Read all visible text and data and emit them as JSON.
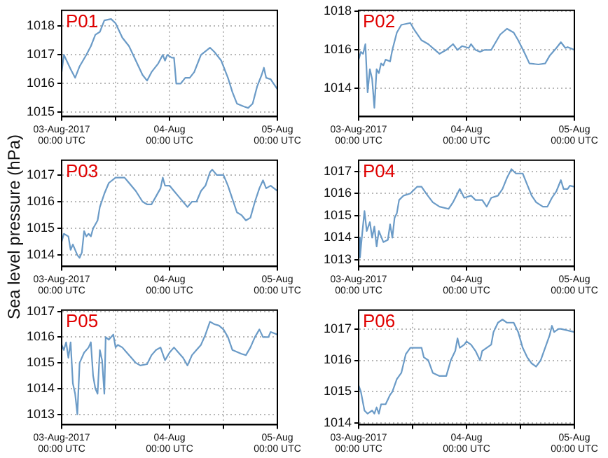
{
  "chart_data": [
    {
      "type": "line",
      "title": "P01",
      "grid": true,
      "legend": false,
      "marker": "none",
      "line_style": "solid",
      "xlim": [
        "2017-08-03T00:00",
        "2017-08-05T00:00"
      ],
      "xticks": [
        {
          "value": "2017-08-03T00:00",
          "label": "03-Aug-2017\n00:00 UTC"
        },
        {
          "value": "2017-08-03T12:00",
          "label": null
        },
        {
          "value": "2017-08-04T00:00",
          "label": "04-Aug\n00:00 UTC"
        },
        {
          "value": "2017-08-04T12:00",
          "label": null
        },
        {
          "value": "2017-08-05T00:00",
          "label": "05-Aug\n00:00 UTC"
        }
      ],
      "ylim": [
        1014.85,
        1018.55
      ],
      "yticks": [
        1015,
        1016,
        1017,
        1018
      ],
      "series": [
        {
          "color": "#6b9bc7",
          "x": [
            "2017-08-03T00:00",
            "2017-08-03T00:30",
            "2017-08-03T02:00",
            "2017-08-03T03:00",
            "2017-08-03T04:00",
            "2017-08-03T05:30",
            "2017-08-03T06:30",
            "2017-08-03T07:30",
            "2017-08-03T08:30",
            "2017-08-03T09:30",
            "2017-08-03T11:00",
            "2017-08-03T12:00",
            "2017-08-03T13:30",
            "2017-08-03T15:00",
            "2017-08-03T16:30",
            "2017-08-03T18:00",
            "2017-08-03T19:00",
            "2017-08-03T20:00",
            "2017-08-03T21:30",
            "2017-08-03T22:30",
            "2017-08-03T23:00",
            "2017-08-03T23:30",
            "2017-08-04T00:30",
            "2017-08-04T01:00",
            "2017-08-04T01:30",
            "2017-08-04T02:30",
            "2017-08-04T03:30",
            "2017-08-04T04:30",
            "2017-08-04T05:30",
            "2017-08-04T06:30",
            "2017-08-04T07:00",
            "2017-08-04T09:00",
            "2017-08-04T10:00",
            "2017-08-04T11:30",
            "2017-08-04T13:00",
            "2017-08-04T14:00",
            "2017-08-04T15:00",
            "2017-08-04T16:30",
            "2017-08-04T17:30",
            "2017-08-04T18:30",
            "2017-08-04T19:30",
            "2017-08-04T20:30",
            "2017-08-04T21:00",
            "2017-08-04T21:30",
            "2017-08-04T22:30",
            "2017-08-05T00:00"
          ],
          "values": [
            1016.4,
            1017.0,
            1016.5,
            1016.2,
            1016.6,
            1017.0,
            1017.3,
            1017.7,
            1017.8,
            1018.2,
            1018.25,
            1018.1,
            1017.6,
            1017.3,
            1016.8,
            1016.3,
            1016.1,
            1016.4,
            1016.7,
            1017.0,
            1016.8,
            1017.0,
            1016.9,
            1016.9,
            1016.0,
            1016.0,
            1016.2,
            1016.2,
            1016.4,
            1016.8,
            1017.0,
            1017.25,
            1017.1,
            1016.8,
            1016.2,
            1015.7,
            1015.3,
            1015.2,
            1015.15,
            1015.3,
            1015.9,
            1016.3,
            1016.55,
            1016.2,
            1016.15,
            1015.8
          ]
        }
      ]
    },
    {
      "type": "line",
      "title": "P02",
      "grid": true,
      "legend": false,
      "marker": "none",
      "line_style": "solid",
      "xlim": [
        "2017-08-03T00:00",
        "2017-08-05T00:00"
      ],
      "xticks": [
        {
          "value": "2017-08-03T00:00",
          "label": "03-Aug-2017\n00:00 UTC"
        },
        {
          "value": "2017-08-03T12:00",
          "label": null
        },
        {
          "value": "2017-08-04T00:00",
          "label": "04-Aug\n00:00 UTC"
        },
        {
          "value": "2017-08-04T12:00",
          "label": null
        },
        {
          "value": "2017-08-05T00:00",
          "label": "05-Aug\n00:00 UTC"
        }
      ],
      "ylim": [
        1012.55,
        1018.05
      ],
      "yticks": [
        1014,
        1016,
        1018
      ],
      "series": [
        {
          "color": "#6b9bc7",
          "x": [
            "2017-08-03T00:00",
            "2017-08-03T00:30",
            "2017-08-03T01:00",
            "2017-08-03T01:30",
            "2017-08-03T02:00",
            "2017-08-03T02:30",
            "2017-08-03T03:00",
            "2017-08-03T03:30",
            "2017-08-03T04:00",
            "2017-08-03T04:30",
            "2017-08-03T05:00",
            "2017-08-03T05:30",
            "2017-08-03T06:00",
            "2017-08-03T07:00",
            "2017-08-03T07:30",
            "2017-08-03T08:30",
            "2017-08-03T09:30",
            "2017-08-03T11:30",
            "2017-08-03T12:30",
            "2017-08-03T14:00",
            "2017-08-03T15:30",
            "2017-08-03T17:00",
            "2017-08-03T18:00",
            "2017-08-03T19:30",
            "2017-08-03T21:00",
            "2017-08-03T22:00",
            "2017-08-03T23:00",
            "2017-08-04T00:30",
            "2017-08-04T01:00",
            "2017-08-04T02:00",
            "2017-08-04T03:00",
            "2017-08-04T04:00",
            "2017-08-04T05:30",
            "2017-08-04T06:30",
            "2017-08-04T07:30",
            "2017-08-04T09:00",
            "2017-08-04T10:30",
            "2017-08-04T11:30",
            "2017-08-04T13:00",
            "2017-08-04T14:00",
            "2017-08-04T16:00",
            "2017-08-04T17:30",
            "2017-08-04T18:30",
            "2017-08-04T20:00",
            "2017-08-04T21:00",
            "2017-08-04T22:00",
            "2017-08-04T22:30",
            "2017-08-05T00:00"
          ],
          "values": [
            1015.5,
            1015.9,
            1015.8,
            1016.3,
            1013.8,
            1015.0,
            1014.5,
            1013.0,
            1015.0,
            1014.8,
            1015.3,
            1015.2,
            1015.5,
            1015.4,
            1016.0,
            1016.9,
            1017.3,
            1017.4,
            1017.0,
            1016.5,
            1016.3,
            1016.0,
            1015.8,
            1016.0,
            1016.3,
            1016.0,
            1016.2,
            1016.1,
            1016.3,
            1016.0,
            1015.9,
            1016.0,
            1016.0,
            1016.4,
            1016.8,
            1017.1,
            1016.9,
            1016.5,
            1015.8,
            1015.3,
            1015.25,
            1015.3,
            1015.7,
            1016.1,
            1016.4,
            1016.1,
            1016.15,
            1016.0
          ]
        }
      ]
    },
    {
      "type": "line",
      "title": "P03",
      "ylabel": "Sea level pressure (hPa)",
      "grid": true,
      "legend": false,
      "marker": "none",
      "line_style": "solid",
      "xlim": [
        "2017-08-03T00:00",
        "2017-08-05T00:00"
      ],
      "xticks": [
        {
          "value": "2017-08-03T00:00",
          "label": "03-Aug-2017\n00:00 UTC"
        },
        {
          "value": "2017-08-03T12:00",
          "label": null
        },
        {
          "value": "2017-08-04T00:00",
          "label": "04-Aug\n00:00 UTC"
        },
        {
          "value": "2017-08-04T12:00",
          "label": null
        },
        {
          "value": "2017-08-05T00:00",
          "label": "05-Aug\n00:00 UTC"
        }
      ],
      "ylim": [
        1013.58,
        1017.55
      ],
      "yticks": [
        1014,
        1015,
        1016,
        1017
      ],
      "series": [
        {
          "color": "#6b9bc7",
          "x": [
            "2017-08-03T00:00",
            "2017-08-03T00:30",
            "2017-08-03T01:30",
            "2017-08-03T02:00",
            "2017-08-03T02:30",
            "2017-08-03T03:30",
            "2017-08-03T04:00",
            "2017-08-03T04:30",
            "2017-08-03T05:00",
            "2017-08-03T05:30",
            "2017-08-03T06:00",
            "2017-08-03T06:30",
            "2017-08-03T07:00",
            "2017-08-03T08:00",
            "2017-08-03T08:30",
            "2017-08-03T09:30",
            "2017-08-03T10:30",
            "2017-08-03T12:00",
            "2017-08-03T14:00",
            "2017-08-03T15:00",
            "2017-08-03T16:30",
            "2017-08-03T18:00",
            "2017-08-03T19:00",
            "2017-08-03T20:00",
            "2017-08-03T21:00",
            "2017-08-03T22:00",
            "2017-08-03T22:30",
            "2017-08-03T23:00",
            "2017-08-04T00:00",
            "2017-08-04T01:00",
            "2017-08-04T02:00",
            "2017-08-04T03:00",
            "2017-08-04T04:00",
            "2017-08-04T05:00",
            "2017-08-04T06:00",
            "2017-08-04T07:00",
            "2017-08-04T08:00",
            "2017-08-04T09:00",
            "2017-08-04T09:30",
            "2017-08-04T10:30",
            "2017-08-04T12:00",
            "2017-08-04T13:00",
            "2017-08-04T14:00",
            "2017-08-04T15:00",
            "2017-08-04T16:00",
            "2017-08-04T17:00",
            "2017-08-04T18:00",
            "2017-08-04T19:00",
            "2017-08-04T20:00",
            "2017-08-04T20:48",
            "2017-08-04T21:30",
            "2017-08-04T22:30",
            "2017-08-05T00:00"
          ],
          "values": [
            1014.5,
            1014.8,
            1014.7,
            1014.2,
            1014.4,
            1014.0,
            1013.9,
            1014.1,
            1014.9,
            1014.7,
            1014.8,
            1014.7,
            1015.0,
            1015.3,
            1015.8,
            1016.3,
            1016.7,
            1016.9,
            1016.9,
            1016.7,
            1016.4,
            1016.0,
            1015.9,
            1015.9,
            1016.2,
            1016.5,
            1016.9,
            1016.6,
            1016.6,
            1016.4,
            1016.2,
            1016.0,
            1015.8,
            1016.0,
            1016.0,
            1016.4,
            1016.6,
            1017.1,
            1017.2,
            1017.0,
            1017.0,
            1016.6,
            1016.1,
            1015.6,
            1015.5,
            1015.3,
            1015.4,
            1016.0,
            1016.5,
            1016.8,
            1016.5,
            1016.6,
            1016.4
          ]
        }
      ]
    },
    {
      "type": "line",
      "title": "P04",
      "grid": true,
      "legend": false,
      "marker": "none",
      "line_style": "solid",
      "xlim": [
        "2017-08-03T00:00",
        "2017-08-05T00:00"
      ],
      "xticks": [
        {
          "value": "2017-08-03T00:00",
          "label": "03-Aug-2017\n00:00 UTC"
        },
        {
          "value": "2017-08-03T12:00",
          "label": null
        },
        {
          "value": "2017-08-04T00:00",
          "label": "04-Aug\n00:00 UTC"
        },
        {
          "value": "2017-08-04T12:00",
          "label": null
        },
        {
          "value": "2017-08-05T00:00",
          "label": "05-Aug\n00:00 UTC"
        }
      ],
      "ylim": [
        1012.7,
        1017.5
      ],
      "yticks": [
        1013,
        1014,
        1015,
        1016,
        1017
      ],
      "series": [
        {
          "color": "#6b9bc7",
          "x": [
            "2017-08-03T00:00",
            "2017-08-03T00:18",
            "2017-08-03T00:48",
            "2017-08-03T01:18",
            "2017-08-03T01:48",
            "2017-08-03T02:30",
            "2017-08-03T03:00",
            "2017-08-03T03:30",
            "2017-08-03T04:00",
            "2017-08-03T04:30",
            "2017-08-03T05:30",
            "2017-08-03T06:30",
            "2017-08-03T07:00",
            "2017-08-03T07:30",
            "2017-08-03T08:00",
            "2017-08-03T08:30",
            "2017-08-03T09:00",
            "2017-08-03T10:00",
            "2017-08-03T11:30",
            "2017-08-03T13:00",
            "2017-08-03T14:00",
            "2017-08-03T15:00",
            "2017-08-03T16:30",
            "2017-08-03T18:00",
            "2017-08-03T20:00",
            "2017-08-03T21:00",
            "2017-08-03T22:00",
            "2017-08-03T22:30",
            "2017-08-03T23:30",
            "2017-08-04T01:00",
            "2017-08-04T02:00",
            "2017-08-04T03:30",
            "2017-08-04T04:30",
            "2017-08-04T05:30",
            "2017-08-04T07:00",
            "2017-08-04T08:00",
            "2017-08-04T09:00",
            "2017-08-04T10:00",
            "2017-08-04T11:00",
            "2017-08-04T12:30",
            "2017-08-04T13:30",
            "2017-08-04T14:30",
            "2017-08-04T15:30",
            "2017-08-04T17:00",
            "2017-08-04T18:00",
            "2017-08-04T19:00",
            "2017-08-04T20:00",
            "2017-08-04T21:00",
            "2017-08-04T21:36",
            "2017-08-04T22:30",
            "2017-08-04T23:00",
            "2017-08-05T00:00"
          ],
          "values": [
            1014.0,
            1013.1,
            1014.2,
            1015.2,
            1014.3,
            1014.7,
            1014.0,
            1014.5,
            1013.6,
            1014.3,
            1013.8,
            1013.9,
            1014.6,
            1014.0,
            1014.9,
            1015.1,
            1015.7,
            1015.9,
            1016.0,
            1016.3,
            1016.3,
            1016.0,
            1015.6,
            1015.4,
            1015.3,
            1015.6,
            1016.0,
            1016.2,
            1015.8,
            1015.9,
            1015.7,
            1015.7,
            1015.4,
            1015.8,
            1015.9,
            1016.2,
            1016.7,
            1017.1,
            1016.9,
            1016.9,
            1016.4,
            1015.9,
            1015.6,
            1015.4,
            1015.4,
            1015.8,
            1016.1,
            1016.6,
            1016.2,
            1016.2,
            1016.35,
            1016.3
          ]
        }
      ]
    },
    {
      "type": "line",
      "title": "P05",
      "grid": true,
      "legend": false,
      "marker": "none",
      "line_style": "solid",
      "xlim": [
        "2017-08-03T00:00",
        "2017-08-05T00:00"
      ],
      "xticks": [
        {
          "value": "2017-08-03T00:00",
          "label": "03-Aug-2017\n00:00 UTC"
        },
        {
          "value": "2017-08-03T12:00",
          "label": null
        },
        {
          "value": "2017-08-04T00:00",
          "label": "04-Aug\n00:00 UTC"
        },
        {
          "value": "2017-08-04T12:00",
          "label": null
        },
        {
          "value": "2017-08-05T00:00",
          "label": "05-Aug\n00:00 UTC"
        }
      ],
      "ylim": [
        1012.6,
        1017.05
      ],
      "yticks": [
        1013,
        1014,
        1015,
        1016,
        1017
      ],
      "series": [
        {
          "color": "#6b9bc7",
          "x": [
            "2017-08-03T00:00",
            "2017-08-03T00:30",
            "2017-08-03T01:00",
            "2017-08-03T01:30",
            "2017-08-03T02:00",
            "2017-08-03T02:30",
            "2017-08-03T03:00",
            "2017-08-03T03:30",
            "2017-08-03T04:00",
            "2017-08-03T05:00",
            "2017-08-03T06:00",
            "2017-08-03T06:30",
            "2017-08-03T07:00",
            "2017-08-03T07:30",
            "2017-08-03T08:00",
            "2017-08-03T08:30",
            "2017-08-03T09:00",
            "2017-08-03T09:30",
            "2017-08-03T09:48",
            "2017-08-03T10:30",
            "2017-08-03T11:30",
            "2017-08-03T12:00",
            "2017-08-03T12:30",
            "2017-08-03T13:30",
            "2017-08-03T14:30",
            "2017-08-03T15:30",
            "2017-08-03T16:30",
            "2017-08-03T17:30",
            "2017-08-03T19:00",
            "2017-08-03T20:00",
            "2017-08-03T21:00",
            "2017-08-03T22:00",
            "2017-08-03T23:00",
            "2017-08-04T00:00",
            "2017-08-04T01:00",
            "2017-08-04T02:00",
            "2017-08-04T03:00",
            "2017-08-04T04:00",
            "2017-08-04T05:00",
            "2017-08-04T06:00",
            "2017-08-04T07:00",
            "2017-08-04T08:00",
            "2017-08-04T09:00",
            "2017-08-04T10:00",
            "2017-08-04T11:00",
            "2017-08-04T12:00",
            "2017-08-04T13:00",
            "2017-08-04T14:00",
            "2017-08-04T16:00",
            "2017-08-04T17:00",
            "2017-08-04T18:00",
            "2017-08-04T19:00",
            "2017-08-04T20:00",
            "2017-08-04T20:48",
            "2017-08-04T22:00",
            "2017-08-04T22:30",
            "2017-08-05T00:00"
          ],
          "values": [
            1015.7,
            1015.5,
            1015.8,
            1015.2,
            1015.8,
            1014.2,
            1013.8,
            1013.0,
            1015.0,
            1015.4,
            1015.6,
            1015.8,
            1014.5,
            1014.0,
            1013.8,
            1015.5,
            1015.1,
            1013.8,
            1016.0,
            1015.9,
            1016.1,
            1015.6,
            1015.7,
            1015.6,
            1015.4,
            1015.2,
            1015.0,
            1014.9,
            1014.95,
            1015.3,
            1015.5,
            1015.6,
            1015.1,
            1015.4,
            1015.6,
            1015.4,
            1015.2,
            1014.9,
            1015.3,
            1015.5,
            1015.7,
            1016.1,
            1016.6,
            1016.5,
            1016.45,
            1016.3,
            1016.0,
            1015.5,
            1015.35,
            1015.3,
            1015.6,
            1016.0,
            1016.3,
            1016.0,
            1016.0,
            1016.2,
            1016.1
          ]
        }
      ]
    },
    {
      "type": "line",
      "title": "P06",
      "grid": true,
      "legend": false,
      "marker": "none",
      "line_style": "solid",
      "xlim": [
        "2017-08-03T00:00",
        "2017-08-05T00:00"
      ],
      "xticks": [
        {
          "value": "2017-08-03T00:00",
          "label": "03-Aug-2017\n00:00 UTC"
        },
        {
          "value": "2017-08-03T12:00",
          "label": null
        },
        {
          "value": "2017-08-04T00:00",
          "label": "04-Aug\n00:00 UTC"
        },
        {
          "value": "2017-08-04T12:00",
          "label": null
        },
        {
          "value": "2017-08-05T00:00",
          "label": "05-Aug\n00:00 UTC"
        }
      ],
      "ylim": [
        1013.95,
        1017.6
      ],
      "yticks": [
        1014,
        1015,
        1016,
        1017
      ],
      "series": [
        {
          "color": "#6b9bc7",
          "x": [
            "2017-08-03T00:00",
            "2017-08-03T00:30",
            "2017-08-03T01:18",
            "2017-08-03T02:00",
            "2017-08-03T03:00",
            "2017-08-03T03:30",
            "2017-08-03T04:00",
            "2017-08-03T04:30",
            "2017-08-03T05:00",
            "2017-08-03T06:00",
            "2017-08-03T07:00",
            "2017-08-03T07:30",
            "2017-08-03T08:30",
            "2017-08-03T09:30",
            "2017-08-03T10:30",
            "2017-08-03T11:30",
            "2017-08-03T12:30",
            "2017-08-03T14:00",
            "2017-08-03T14:30",
            "2017-08-03T15:30",
            "2017-08-03T16:30",
            "2017-08-03T18:00",
            "2017-08-03T19:30",
            "2017-08-03T20:30",
            "2017-08-03T21:30",
            "2017-08-03T22:00",
            "2017-08-03T22:30",
            "2017-08-03T23:30",
            "2017-08-04T00:00",
            "2017-08-04T01:00",
            "2017-08-04T02:00",
            "2017-08-04T03:00",
            "2017-08-04T03:30",
            "2017-08-04T04:30",
            "2017-08-04T05:30",
            "2017-08-04T06:00",
            "2017-08-04T07:00",
            "2017-08-04T08:00",
            "2017-08-04T09:00",
            "2017-08-04T10:30",
            "2017-08-04T11:30",
            "2017-08-04T12:30",
            "2017-08-04T13:30",
            "2017-08-04T14:30",
            "2017-08-04T15:30",
            "2017-08-04T16:30",
            "2017-08-04T17:30",
            "2017-08-04T18:30",
            "2017-08-04T19:00",
            "2017-08-04T19:30",
            "2017-08-04T20:30",
            "2017-08-04T21:00",
            "2017-08-04T22:30",
            "2017-08-05T00:00"
          ],
          "values": [
            1015.2,
            1015.0,
            1014.4,
            1014.3,
            1014.4,
            1014.3,
            1014.5,
            1014.3,
            1014.6,
            1014.6,
            1014.9,
            1015.0,
            1015.4,
            1015.6,
            1016.2,
            1016.4,
            1016.4,
            1016.4,
            1016.1,
            1016.0,
            1015.6,
            1015.5,
            1015.5,
            1016.0,
            1016.3,
            1016.7,
            1016.4,
            1016.5,
            1016.6,
            1016.5,
            1016.3,
            1016.0,
            1016.3,
            1016.4,
            1016.5,
            1016.9,
            1017.2,
            1017.3,
            1017.2,
            1017.2,
            1016.9,
            1016.4,
            1016.1,
            1015.9,
            1015.8,
            1016.0,
            1016.4,
            1016.8,
            1017.1,
            1016.9,
            1017.0,
            1017.0,
            1016.95,
            1016.9
          ]
        }
      ]
    }
  ]
}
